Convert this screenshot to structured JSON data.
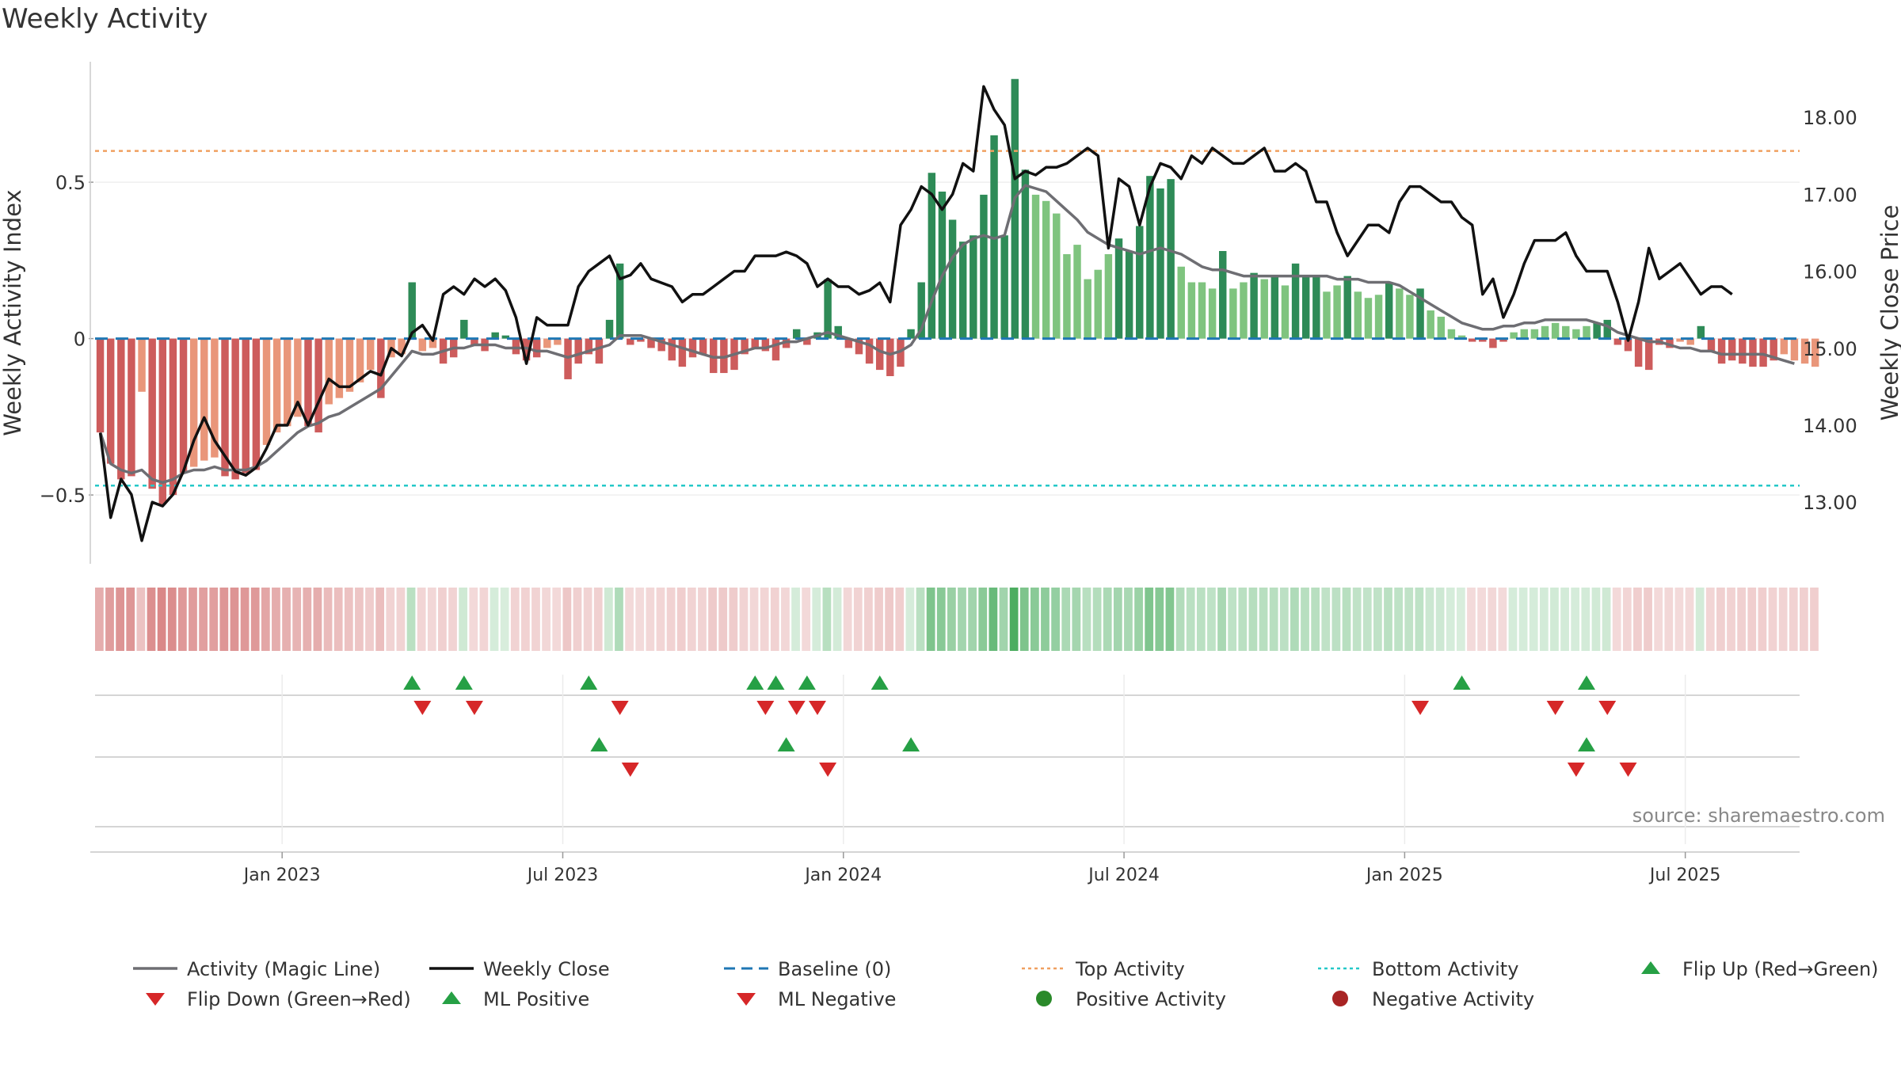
{
  "chart_data": {
    "type": "bar",
    "title": "Weekly Activity",
    "ylabel": "Weekly Activity Index",
    "y2label": "Weekly Close Price",
    "source": "source: sharemaestro.com",
    "ylim": [
      -0.72,
      0.88
    ],
    "y2lim": [
      12.2,
      18.7
    ],
    "yticks": [
      {
        "v": 0.5,
        "label": "0.5"
      },
      {
        "v": 0,
        "label": "0"
      },
      {
        "v": -0.5,
        "label": "−0.5"
      }
    ],
    "y2ticks": [
      {
        "v": 13,
        "label": "13.00"
      },
      {
        "v": 14,
        "label": "14.00"
      },
      {
        "v": 15,
        "label": "15.00"
      },
      {
        "v": 16,
        "label": "16.00"
      },
      {
        "v": 17,
        "label": "17.00"
      },
      {
        "v": 18,
        "label": "18.00"
      }
    ],
    "xticks": [
      {
        "week": 17.5,
        "label": "Jan 2023"
      },
      {
        "week": 44.5,
        "label": "Jul 2023"
      },
      {
        "week": 71.5,
        "label": "Jan 2024"
      },
      {
        "week": 98.5,
        "label": "Jul 2024"
      },
      {
        "week": 125.5,
        "label": "Jan 2025"
      },
      {
        "week": 152.5,
        "label": "Jul 2025"
      }
    ],
    "n_weeks": 164,
    "top_activity": 0.6,
    "bottom_activity": -0.47,
    "activity": [
      -0.3,
      -0.4,
      -0.45,
      -0.44,
      -0.17,
      -0.48,
      -0.53,
      -0.5,
      -0.43,
      -0.41,
      -0.39,
      -0.38,
      -0.44,
      -0.45,
      -0.43,
      -0.42,
      -0.34,
      -0.3,
      -0.28,
      -0.25,
      -0.28,
      -0.3,
      -0.21,
      -0.19,
      -0.17,
      -0.14,
      -0.1,
      -0.19,
      -0.06,
      -0.05,
      0.18,
      -0.04,
      -0.03,
      -0.08,
      -0.06,
      0.06,
      -0.02,
      -0.04,
      0.02,
      0.01,
      -0.05,
      -0.07,
      -0.06,
      -0.03,
      -0.02,
      -0.13,
      -0.08,
      -0.05,
      -0.08,
      0.06,
      0.24,
      -0.02,
      -0.01,
      -0.03,
      -0.04,
      -0.07,
      -0.09,
      -0.06,
      -0.05,
      -0.11,
      -0.11,
      -0.1,
      -0.05,
      -0.03,
      -0.04,
      -0.07,
      -0.03,
      0.03,
      -0.02,
      0.02,
      0.19,
      0.04,
      -0.03,
      -0.05,
      -0.08,
      -0.1,
      -0.12,
      -0.09,
      0.03,
      0.18,
      0.53,
      0.47,
      0.38,
      0.31,
      0.33,
      0.46,
      0.65,
      0.33,
      0.83,
      0.54,
      0.46,
      0.44,
      0.4,
      0.27,
      0.3,
      0.19,
      0.22,
      0.27,
      0.32,
      0.28,
      0.36,
      0.52,
      0.48,
      0.51,
      0.23,
      0.18,
      0.18,
      0.16,
      0.28,
      0.16,
      0.18,
      0.21,
      0.19,
      0.2,
      0.17,
      0.24,
      0.2,
      0.2,
      0.15,
      0.17,
      0.2,
      0.15,
      0.13,
      0.14,
      0.18,
      0.16,
      0.14,
      0.16,
      0.09,
      0.07,
      0.03,
      0.01,
      -0.01,
      -0.01,
      -0.03,
      -0.01,
      0.02,
      0.03,
      0.03,
      0.04,
      0.05,
      0.04,
      0.03,
      0.04,
      0.05,
      0.06,
      -0.02,
      -0.04,
      -0.09,
      -0.1,
      -0.02,
      -0.03,
      -0.01,
      -0.02,
      0.04,
      -0.04,
      -0.08,
      -0.07,
      -0.08,
      -0.09,
      -0.09,
      -0.07,
      -0.05,
      -0.07,
      -0.08,
      -0.09
    ],
    "magic_line": [
      -0.3,
      -0.4,
      -0.42,
      -0.43,
      -0.42,
      -0.45,
      -0.46,
      -0.45,
      -0.43,
      -0.42,
      -0.42,
      -0.41,
      -0.42,
      -0.42,
      -0.42,
      -0.41,
      -0.39,
      -0.36,
      -0.33,
      -0.3,
      -0.28,
      -0.27,
      -0.25,
      -0.24,
      -0.22,
      -0.2,
      -0.18,
      -0.16,
      -0.12,
      -0.08,
      -0.04,
      -0.05,
      -0.05,
      -0.04,
      -0.03,
      -0.03,
      -0.02,
      -0.02,
      -0.02,
      -0.03,
      -0.03,
      -0.03,
      -0.04,
      -0.04,
      -0.05,
      -0.06,
      -0.05,
      -0.04,
      -0.03,
      -0.02,
      0.01,
      0.01,
      0.01,
      0,
      -0.01,
      -0.02,
      -0.03,
      -0.04,
      -0.05,
      -0.06,
      -0.06,
      -0.05,
      -0.04,
      -0.03,
      -0.03,
      -0.02,
      -0.01,
      -0.01,
      0,
      0.01,
      0.02,
      0.01,
      0,
      -0.01,
      -0.02,
      -0.04,
      -0.05,
      -0.04,
      -0.02,
      0.03,
      0.12,
      0.2,
      0.26,
      0.3,
      0.32,
      0.33,
      0.32,
      0.33,
      0.45,
      0.49,
      0.48,
      0.47,
      0.44,
      0.41,
      0.38,
      0.34,
      0.32,
      0.3,
      0.29,
      0.28,
      0.27,
      0.28,
      0.29,
      0.28,
      0.27,
      0.25,
      0.23,
      0.22,
      0.22,
      0.21,
      0.2,
      0.2,
      0.2,
      0.2,
      0.2,
      0.2,
      0.2,
      0.2,
      0.2,
      0.19,
      0.19,
      0.19,
      0.18,
      0.18,
      0.18,
      0.17,
      0.15,
      0.13,
      0.11,
      0.09,
      0.07,
      0.05,
      0.04,
      0.03,
      0.03,
      0.04,
      0.04,
      0.05,
      0.05,
      0.06,
      0.06,
      0.06,
      0.06,
      0.06,
      0.05,
      0.04,
      0.02,
      0.01,
      0,
      -0.01,
      -0.01,
      -0.02,
      -0.03,
      -0.03,
      -0.04,
      -0.04,
      -0.05,
      -0.05,
      -0.05,
      -0.05,
      -0.05,
      -0.06,
      -0.07,
      -0.08
    ],
    "weekly_close": [
      13.9,
      12.8,
      13.3,
      13.1,
      12.5,
      13,
      12.95,
      13.1,
      13.4,
      13.8,
      14.1,
      13.8,
      13.6,
      13.4,
      13.35,
      13.45,
      13.7,
      14,
      14,
      14.3,
      14,
      14.3,
      14.6,
      14.5,
      14.5,
      14.6,
      14.7,
      14.65,
      15,
      14.9,
      15.2,
      15.3,
      15.1,
      15.7,
      15.8,
      15.7,
      15.9,
      15.8,
      15.9,
      15.75,
      15.4,
      14.8,
      15.4,
      15.3,
      15.3,
      15.3,
      15.8,
      16,
      16.1,
      16.2,
      15.9,
      15.95,
      16.1,
      15.9,
      15.85,
      15.8,
      15.6,
      15.7,
      15.7,
      15.8,
      15.9,
      16,
      16,
      16.2,
      16.2,
      16.2,
      16.25,
      16.2,
      16.1,
      15.8,
      15.9,
      15.8,
      15.8,
      15.7,
      15.75,
      15.85,
      15.6,
      16.6,
      16.8,
      17.1,
      17,
      16.8,
      17,
      17.4,
      17.3,
      18.4,
      18.1,
      17.9,
      17.2,
      17.3,
      17.25,
      17.35,
      17.35,
      17.4,
      17.5,
      17.6,
      17.5,
      16.3,
      17.2,
      17.1,
      16.6,
      17.1,
      17.4,
      17.35,
      17.2,
      17.5,
      17.4,
      17.6,
      17.5,
      17.4,
      17.4,
      17.5,
      17.6,
      17.3,
      17.3,
      17.4,
      17.3,
      16.9,
      16.9,
      16.5,
      16.2,
      16.4,
      16.6,
      16.6,
      16.5,
      16.9,
      17.1,
      17.1,
      17,
      16.9,
      16.9,
      16.7,
      16.6,
      15.7,
      15.9,
      15.4,
      15.7,
      16.1,
      16.4,
      16.4,
      16.4,
      16.5,
      16.2,
      16,
      16,
      16,
      15.6,
      15.1,
      15.6,
      16.3,
      15.9,
      16,
      16.1,
      15.9,
      15.7,
      15.8,
      15.8,
      15.7
    ],
    "ribbon_rows": [
      {
        "name": "Flip",
        "up_weeks": [
          30,
          35,
          47,
          63,
          65,
          68,
          75,
          131,
          143
        ],
        "down_weeks": [
          31,
          36,
          50,
          64,
          67,
          69,
          127,
          140,
          145
        ]
      },
      {
        "name": "ML",
        "up_weeks": [
          48,
          66,
          78,
          143
        ],
        "down_weeks": [
          51,
          70,
          142,
          147
        ]
      },
      {
        "name": "Activity",
        "up_weeks": [],
        "down_weeks": []
      }
    ],
    "legend": [
      {
        "label": "Activity (Magic Line)",
        "symbol": "line",
        "color": "#6e6e73"
      },
      {
        "label": "Weekly Close",
        "symbol": "line",
        "color": "#111111"
      },
      {
        "label": "Baseline (0)",
        "symbol": "dash",
        "color": "#1f77b4"
      },
      {
        "label": "Top Activity",
        "symbol": "dot",
        "color": "#f0a060"
      },
      {
        "label": "Bottom Activity",
        "symbol": "dot",
        "color": "#25c8c8"
      },
      {
        "label": "Flip Up (Red→Green)",
        "symbol": "tri-up",
        "color": "#26a045"
      },
      {
        "label": "Flip Down (Green→Red)",
        "symbol": "tri-down",
        "color": "#d62728"
      },
      {
        "label": "ML Positive",
        "symbol": "tri-up",
        "color": "#26a045"
      },
      {
        "label": "ML Negative",
        "symbol": "tri-down",
        "color": "#d62728"
      },
      {
        "label": "Positive Activity",
        "symbol": "circle",
        "color": "#2a8a2a"
      },
      {
        "label": "Negative Activity",
        "symbol": "circle",
        "color": "#a82424"
      }
    ]
  }
}
